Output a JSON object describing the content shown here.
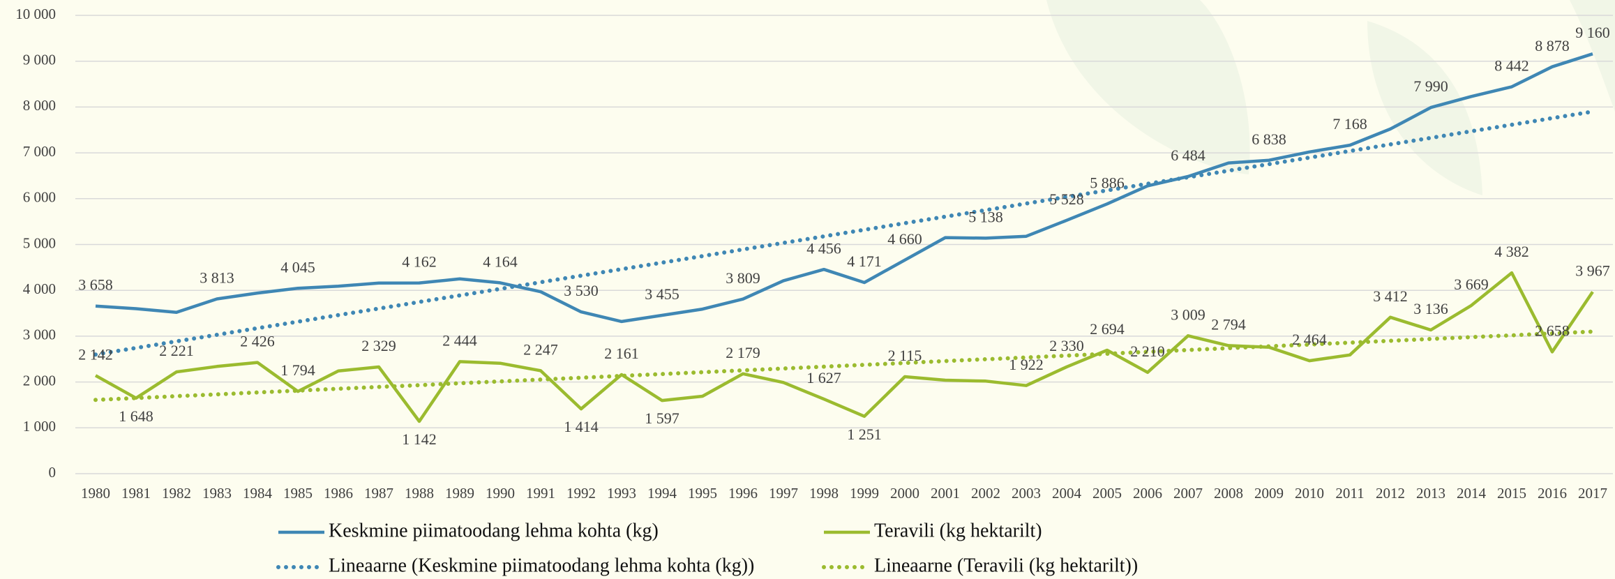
{
  "chart_data": {
    "type": "line",
    "categories": [
      "1980",
      "1981",
      "1982",
      "1983",
      "1984",
      "1985",
      "1986",
      "1987",
      "1988",
      "1989",
      "1990",
      "1991",
      "1992",
      "1993",
      "1994",
      "1995",
      "1996",
      "1997",
      "1998",
      "1999",
      "2000",
      "2001",
      "2002",
      "2003",
      "2004",
      "2005",
      "2006",
      "2007",
      "2008",
      "2009",
      "2010",
      "2011",
      "2012",
      "2013",
      "2014",
      "2015",
      "2016",
      "2017"
    ],
    "ylim": [
      0,
      10000
    ],
    "yticks": [
      0,
      {
        "value": 1000,
        "label": "1 000"
      },
      {
        "value": 2000,
        "label": "2 000"
      },
      {
        "value": 3000,
        "label": "3 000"
      },
      {
        "value": 4000,
        "label": "4 000"
      },
      {
        "value": 5000,
        "label": "5 000"
      },
      {
        "value": 6000,
        "label": "6 000"
      },
      {
        "value": 7000,
        "label": "7 000"
      },
      {
        "value": 8000,
        "label": "8 000"
      },
      {
        "value": 9000,
        "label": "9 000"
      },
      {
        "value": 10000,
        "label": "10 000"
      }
    ],
    "grid": true,
    "legend": "bottom",
    "series": [
      {
        "name": "Keskmine piimatoodang lehma kohta (kg)",
        "color": "#3f87b4",
        "style": "solid",
        "values": [
          3658,
          3600,
          3520,
          3813,
          3940,
          4045,
          4090,
          4160,
          4162,
          4250,
          4164,
          3970,
          3530,
          3320,
          3455,
          3590,
          3809,
          4210,
          4456,
          4171,
          4660,
          5150,
          5138,
          5180,
          5528,
          5886,
          6280,
          6484,
          6780,
          6838,
          7020,
          7168,
          7520,
          7990,
          8230,
          8442,
          8878,
          9160
        ],
        "value_labels": [
          "3 658",
          null,
          null,
          "3 813",
          null,
          "4 045",
          null,
          null,
          "4 162",
          null,
          "4 164",
          null,
          "3 530",
          null,
          "3 455",
          null,
          "3 809",
          null,
          "4 456",
          "4 171",
          "4 660",
          null,
          "5 138",
          null,
          "5 528",
          "5 886",
          null,
          "6 484",
          null,
          "6 838",
          null,
          "7 168",
          null,
          "7 990",
          null,
          "8 442",
          "8 878",
          "9 160"
        ]
      },
      {
        "name": "Teravili (kg hektarilt)",
        "color": "#9bbb2f",
        "style": "solid",
        "values": [
          2142,
          1648,
          2221,
          2340,
          2426,
          1794,
          2240,
          2329,
          1142,
          2444,
          2410,
          2247,
          1414,
          2161,
          1597,
          1690,
          2179,
          1990,
          1627,
          1251,
          2115,
          2040,
          2020,
          1922,
          2330,
          2694,
          2210,
          3009,
          2794,
          2760,
          2464,
          2590,
          3412,
          3136,
          3669,
          4382,
          2658,
          3967
        ],
        "value_labels": [
          "2 142",
          "1 648",
          "2 221",
          null,
          "2 426",
          "1 794",
          null,
          "2 329",
          "1 142",
          "2 444",
          null,
          "2 247",
          "1 414",
          "2 161",
          "1 597",
          null,
          "2 179",
          null,
          "1 627",
          "1 251",
          "2 115",
          null,
          null,
          "1 922",
          "2 330",
          "2 694",
          "2 210",
          "3 009",
          "2 794",
          null,
          "2 464",
          null,
          "3 412",
          "3 136",
          "3 669",
          "4 382",
          "2 658",
          "3 967"
        ]
      },
      {
        "name": "Lineaarne (Keskmine piimatoodang lehma kohta (kg))",
        "color": "#3f87b4",
        "style": "dotted",
        "values": [
          2600,
          2743,
          2887,
          3030,
          3173,
          3316,
          3459,
          3603,
          3746,
          3889,
          4032,
          4176,
          4319,
          4462,
          4605,
          4748,
          4892,
          5035,
          5178,
          5321,
          5465,
          5608,
          5751,
          5894,
          6038,
          6181,
          6324,
          6467,
          6611,
          6754,
          6897,
          7040,
          7184,
          7327,
          7470,
          7613,
          7757,
          7900
        ]
      },
      {
        "name": "Lineaarne (Teravili (kg hektarilt))",
        "color": "#9bbb2f",
        "style": "dotted",
        "values": [
          1610,
          1650,
          1691,
          1731,
          1771,
          1811,
          1852,
          1892,
          1932,
          1972,
          2013,
          2053,
          2093,
          2134,
          2174,
          2214,
          2254,
          2295,
          2335,
          2375,
          2415,
          2456,
          2496,
          2536,
          2576,
          2617,
          2657,
          2697,
          2738,
          2778,
          2818,
          2858,
          2899,
          2939,
          2979,
          3019,
          3060,
          3100
        ]
      }
    ]
  }
}
